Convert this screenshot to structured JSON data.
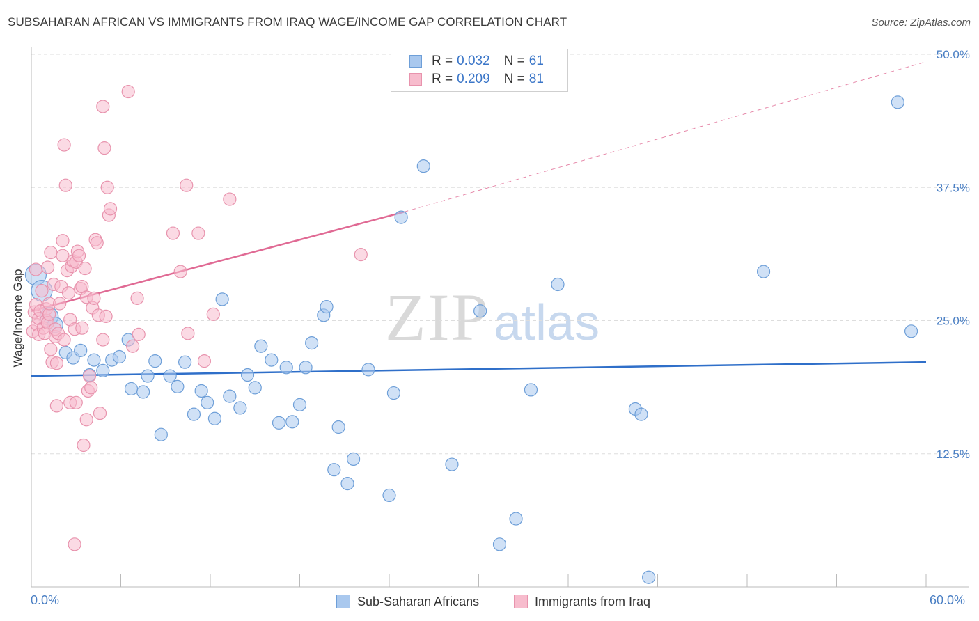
{
  "title": "SUBSAHARAN AFRICAN VS IMMIGRANTS FROM IRAQ WAGE/INCOME GAP CORRELATION CHART",
  "source": "Source: ZipAtlas.com",
  "watermark": {
    "zip": "ZIP",
    "atlas": "atlas"
  },
  "legend": {
    "rows": [
      {
        "r_label": "R =",
        "r_value": "0.032",
        "n_label": "N =",
        "n_value": "61"
      },
      {
        "r_label": "R =",
        "r_value": "0.209",
        "n_label": "N =",
        "n_value": "81"
      }
    ]
  },
  "bottom_legend": [
    "Sub-Saharan Africans",
    "Immigrants from Iraq"
  ],
  "colors": {
    "blue_fill": "#a9c8ee",
    "blue_stroke": "#6e9fd8",
    "blue_line": "#2f6fc9",
    "pink_fill": "#f7bccd",
    "pink_stroke": "#e893ad",
    "pink_line": "#e06a94",
    "axis_text": "#4a7fc4",
    "grid": "#dddddd"
  },
  "chart_data": {
    "type": "scatter",
    "title": "SUBSAHARAN AFRICAN VS IMMIGRANTS FROM IRAQ WAGE/INCOME GAP CORRELATION CHART",
    "xlabel": "",
    "ylabel": "Wage/Income Gap",
    "xlim": [
      0,
      60
    ],
    "ylim": [
      0,
      50
    ],
    "x_tick_labels": [
      "0.0%",
      "60.0%"
    ],
    "y_ticks": [
      12.5,
      25.0,
      37.5,
      50.0
    ],
    "y_tick_labels": [
      "12.5%",
      "25.0%",
      "37.5%",
      "50.0%"
    ],
    "grid": true,
    "legend_position": "top-center",
    "series": [
      {
        "name": "Sub-Saharan Africans",
        "color": "#a9c8ee",
        "r": 0.032,
        "n": 61,
        "trend": {
          "x": [
            0,
            60
          ],
          "y": [
            19.8,
            21.1
          ]
        },
        "points": [
          [
            0.3,
            29.3
          ],
          [
            0.7,
            27.8
          ],
          [
            1.2,
            25.4
          ],
          [
            1.6,
            24.6
          ],
          [
            2.3,
            22.0
          ],
          [
            2.8,
            21.5
          ],
          [
            3.3,
            22.2
          ],
          [
            3.9,
            19.9
          ],
          [
            4.2,
            21.3
          ],
          [
            4.8,
            20.3
          ],
          [
            5.4,
            21.3
          ],
          [
            5.9,
            21.6
          ],
          [
            6.5,
            23.2
          ],
          [
            6.7,
            18.6
          ],
          [
            7.5,
            18.3
          ],
          [
            7.8,
            19.8
          ],
          [
            8.3,
            21.2
          ],
          [
            8.7,
            14.3
          ],
          [
            9.3,
            19.8
          ],
          [
            9.8,
            18.8
          ],
          [
            10.3,
            21.1
          ],
          [
            10.9,
            16.2
          ],
          [
            11.4,
            18.4
          ],
          [
            11.8,
            17.3
          ],
          [
            12.3,
            15.8
          ],
          [
            12.8,
            27.0
          ],
          [
            13.3,
            17.9
          ],
          [
            14.0,
            16.8
          ],
          [
            14.5,
            19.9
          ],
          [
            15.0,
            18.7
          ],
          [
            15.4,
            22.6
          ],
          [
            16.1,
            21.3
          ],
          [
            16.6,
            15.4
          ],
          [
            17.1,
            20.6
          ],
          [
            17.5,
            15.5
          ],
          [
            18.0,
            17.1
          ],
          [
            18.4,
            20.6
          ],
          [
            18.8,
            22.9
          ],
          [
            19.6,
            25.5
          ],
          [
            19.8,
            26.3
          ],
          [
            20.3,
            11.0
          ],
          [
            20.6,
            15.0
          ],
          [
            21.2,
            9.7
          ],
          [
            21.6,
            12.0
          ],
          [
            22.6,
            20.4
          ],
          [
            24.0,
            8.6
          ],
          [
            24.3,
            18.2
          ],
          [
            24.8,
            34.7
          ],
          [
            26.3,
            39.5
          ],
          [
            28.2,
            11.5
          ],
          [
            30.1,
            25.9
          ],
          [
            31.4,
            4.0
          ],
          [
            32.5,
            6.4
          ],
          [
            33.5,
            18.5
          ],
          [
            35.3,
            28.4
          ],
          [
            40.5,
            16.7
          ],
          [
            40.9,
            16.2
          ],
          [
            41.4,
            0.9
          ],
          [
            49.1,
            29.6
          ],
          [
            58.1,
            45.5
          ],
          [
            59.0,
            24.0
          ]
        ]
      },
      {
        "name": "Immigrants from Iraq",
        "color": "#f7bccd",
        "r": 0.209,
        "n": 81,
        "trend": {
          "x": [
            0,
            25
          ],
          "y": [
            25.9,
            35.2
          ]
        },
        "trend_extended": {
          "x": [
            25,
            60
          ],
          "y": [
            35.2,
            49.3
          ]
        },
        "points": [
          [
            0.1,
            24.0
          ],
          [
            0.2,
            25.8
          ],
          [
            0.3,
            26.5
          ],
          [
            0.3,
            29.8
          ],
          [
            0.4,
            24.6
          ],
          [
            0.5,
            25.2
          ],
          [
            0.5,
            23.7
          ],
          [
            0.6,
            25.9
          ],
          [
            0.7,
            27.8
          ],
          [
            0.8,
            24.3
          ],
          [
            0.9,
            23.8
          ],
          [
            1.0,
            25.0
          ],
          [
            1.0,
            26.1
          ],
          [
            1.1,
            24.8
          ],
          [
            1.1,
            30.0
          ],
          [
            1.2,
            25.6
          ],
          [
            1.2,
            26.6
          ],
          [
            1.3,
            22.3
          ],
          [
            1.3,
            31.4
          ],
          [
            1.4,
            21.1
          ],
          [
            1.5,
            28.4
          ],
          [
            1.6,
            23.5
          ],
          [
            1.6,
            24.2
          ],
          [
            1.7,
            21.0
          ],
          [
            1.7,
            17.0
          ],
          [
            1.8,
            23.8
          ],
          [
            1.9,
            26.6
          ],
          [
            2.0,
            28.2
          ],
          [
            2.1,
            31.1
          ],
          [
            2.1,
            32.5
          ],
          [
            2.2,
            23.2
          ],
          [
            2.2,
            41.5
          ],
          [
            2.3,
            37.7
          ],
          [
            2.4,
            29.7
          ],
          [
            2.5,
            27.6
          ],
          [
            2.6,
            25.1
          ],
          [
            2.6,
            17.3
          ],
          [
            2.7,
            30.1
          ],
          [
            2.8,
            30.6
          ],
          [
            2.9,
            24.2
          ],
          [
            3.0,
            17.3
          ],
          [
            3.0,
            30.5
          ],
          [
            3.1,
            31.5
          ],
          [
            3.2,
            31.1
          ],
          [
            3.3,
            28.0
          ],
          [
            3.4,
            28.2
          ],
          [
            3.4,
            24.3
          ],
          [
            3.5,
            13.3
          ],
          [
            3.6,
            29.9
          ],
          [
            3.7,
            27.2
          ],
          [
            3.7,
            15.7
          ],
          [
            3.8,
            18.4
          ],
          [
            3.9,
            19.8
          ],
          [
            4.0,
            18.7
          ],
          [
            4.1,
            26.2
          ],
          [
            4.2,
            27.1
          ],
          [
            4.3,
            32.6
          ],
          [
            4.4,
            32.3
          ],
          [
            4.5,
            25.5
          ],
          [
            4.6,
            16.3
          ],
          [
            4.8,
            45.1
          ],
          [
            4.8,
            23.2
          ],
          [
            4.9,
            41.2
          ],
          [
            5.0,
            25.4
          ],
          [
            5.1,
            37.5
          ],
          [
            5.2,
            34.9
          ],
          [
            5.3,
            35.5
          ],
          [
            6.5,
            46.5
          ],
          [
            6.8,
            22.6
          ],
          [
            7.1,
            27.1
          ],
          [
            7.2,
            23.7
          ],
          [
            9.5,
            33.2
          ],
          [
            10.0,
            29.6
          ],
          [
            10.4,
            37.7
          ],
          [
            10.5,
            23.8
          ],
          [
            11.2,
            33.2
          ],
          [
            11.6,
            21.2
          ],
          [
            12.2,
            25.6
          ],
          [
            13.3,
            36.4
          ],
          [
            22.1,
            31.2
          ],
          [
            2.9,
            4.0
          ]
        ]
      }
    ]
  }
}
